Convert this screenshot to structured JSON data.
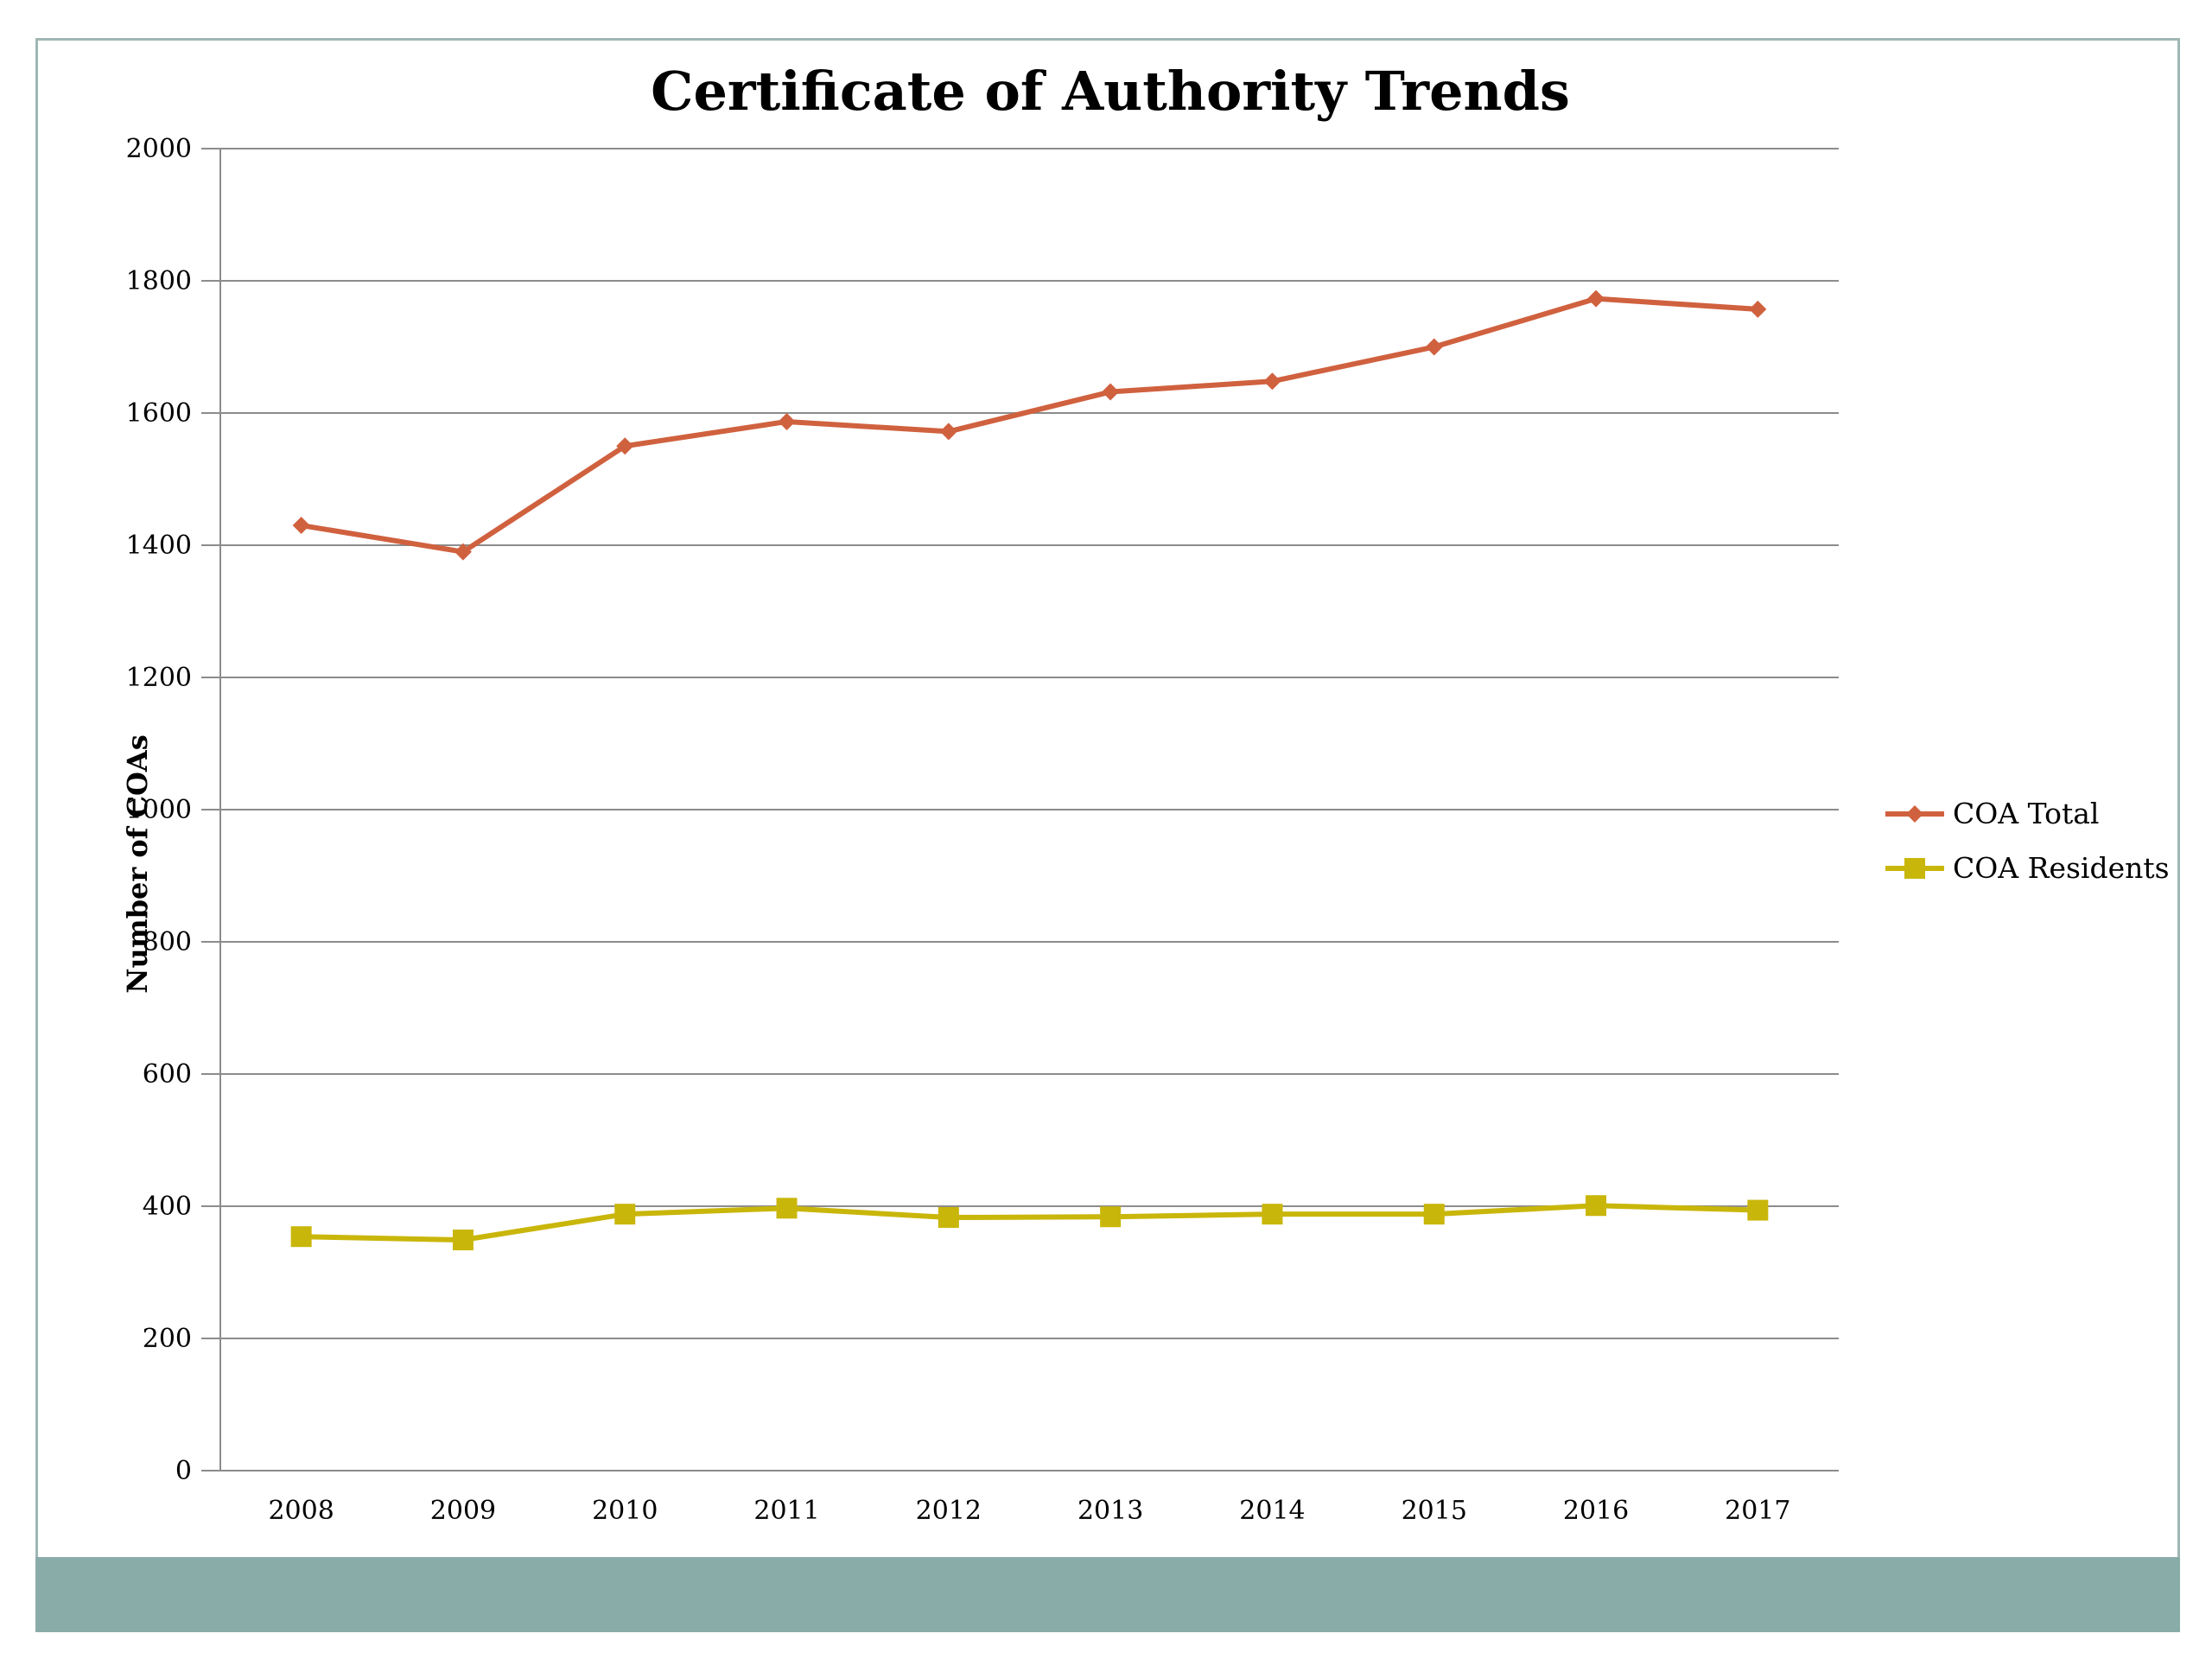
{
  "chart_data": {
    "type": "line",
    "title": "Certificate of Authority Trends",
    "xlabel": "",
    "ylabel": "Number of COAs",
    "categories": [
      "2008",
      "2009",
      "2010",
      "2011",
      "2012",
      "2013",
      "2014",
      "2015",
      "2016",
      "2017"
    ],
    "ylim": [
      0,
      2000
    ],
    "yticks": [
      "0",
      "200",
      "400",
      "600",
      "800",
      "1000",
      "1200",
      "1400",
      "1600",
      "1800",
      "2000"
    ],
    "grid": true,
    "legend_position": "right",
    "series": [
      {
        "name": "COA Total",
        "color": "#d0613f",
        "marker": "diamond",
        "values": [
          1430,
          1390,
          1550,
          1587,
          1572,
          1632,
          1648,
          1700,
          1773,
          1757
        ]
      },
      {
        "name": "COA Residents",
        "color": "#c9b60a",
        "marker": "square",
        "values": [
          354,
          349,
          388,
          397,
          383,
          384,
          388,
          388,
          401,
          394
        ]
      }
    ]
  }
}
